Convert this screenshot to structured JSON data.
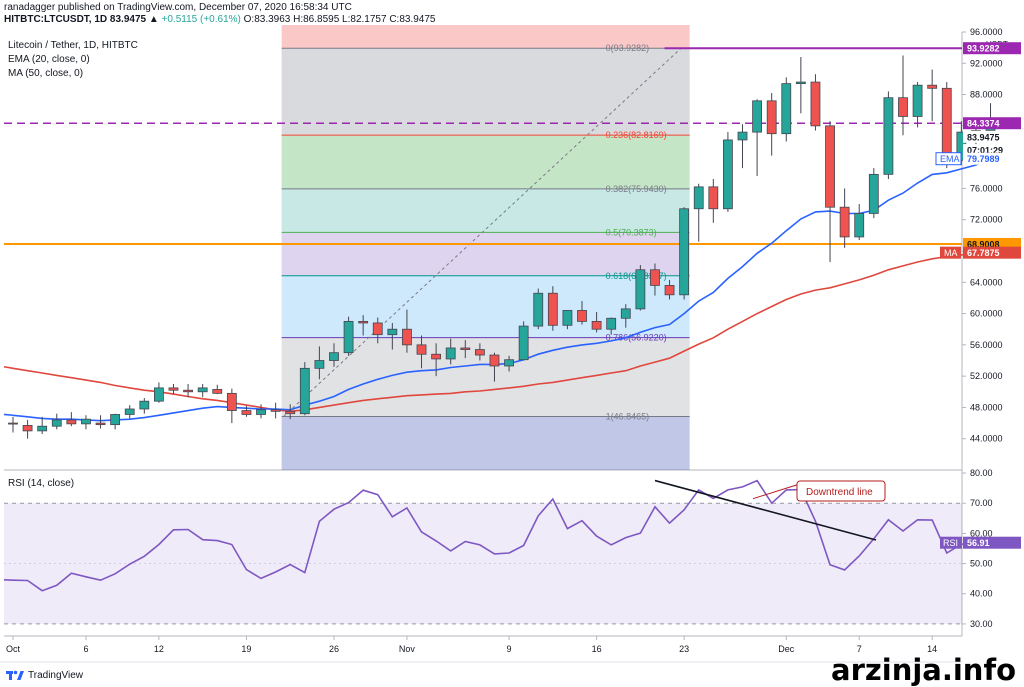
{
  "header": {
    "published_line": "ranadagger published on TradingView.com, December 07, 2020 16:58:34 UTC",
    "ohlc_line_prefix": "HITBTC:LTCUSDT, 1D  83.9475  ▲",
    "ohlc_change": "+0.5115 (+0.61%)",
    "ohlc_values": "O:83.3963  H:86.8595  L:82.1757  C:83.9475"
  },
  "indicators": {
    "title": "Litecoin / Tether, 1D, HITBTC",
    "ema": "EMA (20, close, 0)",
    "ma": "MA (50, close, 0)",
    "rsi": "RSI (14, close)"
  },
  "footer": {
    "brand": "TradingView",
    "watermark": "arzinja.info"
  },
  "colors": {
    "up": "#26a69a",
    "down": "#ef5350",
    "ema": "#2962ff",
    "ma": "#e0473d",
    "rsi": "#7e57c2",
    "purple_line": "#9c27b0",
    "orange_line": "#ff9800",
    "annotation": "#b71c1c"
  },
  "chart_data": [
    {
      "type": "candlestick",
      "title": "Litecoin / Tether, 1D, HITBTC",
      "unit": "USDT",
      "ylim": [
        40,
        96
      ],
      "y_ticks": [
        "96.0000",
        "92.0000",
        "88.0000",
        "84.0000",
        "80.0000",
        "76.0000",
        "72.0000",
        "68.0000",
        "64.0000",
        "60.0000",
        "56.0000",
        "52.0000",
        "48.0000",
        "44.0000"
      ],
      "x_ticks": [
        "Oct",
        "6",
        "12",
        "19",
        "26",
        "Nov",
        "9",
        "16",
        "23",
        "Dec",
        "7",
        "14"
      ],
      "candles": [
        {
          "o": 46.0,
          "h": 46.8,
          "l": 44.8,
          "c": 45.9
        },
        {
          "o": 45.7,
          "h": 46.4,
          "l": 44.0,
          "c": 45.0
        },
        {
          "o": 45.0,
          "h": 46.8,
          "l": 44.6,
          "c": 45.6
        },
        {
          "o": 45.6,
          "h": 47.2,
          "l": 45.2,
          "c": 46.4
        },
        {
          "o": 46.4,
          "h": 47.4,
          "l": 45.6,
          "c": 45.9
        },
        {
          "o": 45.9,
          "h": 47.0,
          "l": 45.2,
          "c": 46.5
        },
        {
          "o": 46.0,
          "h": 47.0,
          "l": 45.3,
          "c": 45.8
        },
        {
          "o": 45.8,
          "h": 47.2,
          "l": 45.2,
          "c": 47.1
        },
        {
          "o": 47.1,
          "h": 48.3,
          "l": 46.6,
          "c": 47.8
        },
        {
          "o": 47.8,
          "h": 49.2,
          "l": 47.2,
          "c": 48.8
        },
        {
          "o": 48.8,
          "h": 51.2,
          "l": 48.6,
          "c": 50.5
        },
        {
          "o": 50.5,
          "h": 51.0,
          "l": 49.7,
          "c": 50.2
        },
        {
          "o": 50.2,
          "h": 51.0,
          "l": 49.3,
          "c": 50.0
        },
        {
          "o": 50.0,
          "h": 51.0,
          "l": 49.3,
          "c": 50.5
        },
        {
          "o": 50.3,
          "h": 50.9,
          "l": 49.7,
          "c": 49.8
        },
        {
          "o": 49.8,
          "h": 50.4,
          "l": 46.0,
          "c": 47.6
        },
        {
          "o": 47.6,
          "h": 48.2,
          "l": 46.8,
          "c": 47.1
        },
        {
          "o": 47.1,
          "h": 48.4,
          "l": 46.6,
          "c": 47.7
        },
        {
          "o": 47.7,
          "h": 48.6,
          "l": 46.6,
          "c": 47.5
        },
        {
          "o": 47.5,
          "h": 48.4,
          "l": 46.5,
          "c": 47.2
        },
        {
          "o": 47.2,
          "h": 53.8,
          "l": 47.0,
          "c": 53.0
        },
        {
          "o": 53.0,
          "h": 55.8,
          "l": 51.6,
          "c": 54.0
        },
        {
          "o": 54.0,
          "h": 56.2,
          "l": 53.2,
          "c": 55.0
        },
        {
          "o": 55.0,
          "h": 59.6,
          "l": 54.6,
          "c": 59.0
        },
        {
          "o": 59.0,
          "h": 59.8,
          "l": 57.2,
          "c": 58.8
        },
        {
          "o": 58.8,
          "h": 59.5,
          "l": 56.2,
          "c": 57.3
        },
        {
          "o": 57.3,
          "h": 58.8,
          "l": 55.4,
          "c": 58.0
        },
        {
          "o": 58.0,
          "h": 60.5,
          "l": 55.0,
          "c": 56.0
        },
        {
          "o": 56.0,
          "h": 57.2,
          "l": 53.0,
          "c": 54.8
        },
        {
          "o": 54.8,
          "h": 56.2,
          "l": 52.0,
          "c": 54.2
        },
        {
          "o": 54.2,
          "h": 56.8,
          "l": 53.5,
          "c": 55.6
        },
        {
          "o": 55.6,
          "h": 56.6,
          "l": 54.3,
          "c": 55.4
        },
        {
          "o": 55.4,
          "h": 56.2,
          "l": 54.0,
          "c": 54.7
        },
        {
          "o": 54.7,
          "h": 55.0,
          "l": 51.3,
          "c": 53.3
        },
        {
          "o": 53.3,
          "h": 54.6,
          "l": 52.6,
          "c": 54.1
        },
        {
          "o": 54.1,
          "h": 59.0,
          "l": 54.0,
          "c": 58.4
        },
        {
          "o": 58.4,
          "h": 63.2,
          "l": 58.0,
          "c": 62.6
        },
        {
          "o": 62.6,
          "h": 63.5,
          "l": 57.8,
          "c": 58.5
        },
        {
          "o": 58.5,
          "h": 60.4,
          "l": 58.0,
          "c": 60.4
        },
        {
          "o": 60.4,
          "h": 61.6,
          "l": 58.6,
          "c": 59.0
        },
        {
          "o": 59.0,
          "h": 60.2,
          "l": 57.6,
          "c": 58.0
        },
        {
          "o": 58.0,
          "h": 59.5,
          "l": 57.3,
          "c": 59.4
        },
        {
          "o": 59.4,
          "h": 61.2,
          "l": 58.2,
          "c": 60.6
        },
        {
          "o": 60.6,
          "h": 66.2,
          "l": 60.4,
          "c": 65.6
        },
        {
          "o": 65.6,
          "h": 66.4,
          "l": 62.3,
          "c": 63.6
        },
        {
          "o": 63.6,
          "h": 64.3,
          "l": 61.8,
          "c": 62.4
        },
        {
          "o": 62.4,
          "h": 73.6,
          "l": 61.8,
          "c": 73.4
        },
        {
          "o": 73.4,
          "h": 76.6,
          "l": 69.2,
          "c": 76.2
        },
        {
          "o": 76.2,
          "h": 77.2,
          "l": 71.6,
          "c": 73.4
        },
        {
          "o": 73.4,
          "h": 83.2,
          "l": 73.0,
          "c": 82.2
        },
        {
          "o": 82.2,
          "h": 84.2,
          "l": 78.6,
          "c": 83.2
        },
        {
          "o": 83.2,
          "h": 87.4,
          "l": 77.6,
          "c": 87.2
        },
        {
          "o": 87.2,
          "h": 88.2,
          "l": 80.2,
          "c": 83.0
        },
        {
          "o": 83.0,
          "h": 90.2,
          "l": 82.0,
          "c": 89.4
        },
        {
          "o": 89.4,
          "h": 92.8,
          "l": 85.6,
          "c": 89.6
        },
        {
          "o": 89.6,
          "h": 90.6,
          "l": 83.4,
          "c": 84.0
        },
        {
          "o": 84.0,
          "h": 84.6,
          "l": 66.6,
          "c": 73.6
        },
        {
          "o": 73.6,
          "h": 76.0,
          "l": 68.4,
          "c": 69.8
        },
        {
          "o": 69.8,
          "h": 74.0,
          "l": 69.4,
          "c": 72.8
        },
        {
          "o": 72.8,
          "h": 78.6,
          "l": 72.2,
          "c": 77.8
        },
        {
          "o": 77.8,
          "h": 88.4,
          "l": 77.2,
          "c": 87.6
        },
        {
          "o": 87.6,
          "h": 93.0,
          "l": 82.8,
          "c": 85.2
        },
        {
          "o": 85.2,
          "h": 89.6,
          "l": 83.8,
          "c": 89.2
        },
        {
          "o": 89.2,
          "h": 91.2,
          "l": 84.6,
          "c": 88.8
        },
        {
          "o": 88.8,
          "h": 89.6,
          "l": 78.6,
          "c": 79.6
        },
        {
          "o": 79.6,
          "h": 84.6,
          "l": 79.0,
          "c": 83.2
        },
        {
          "o": 83.2,
          "h": 84.4,
          "l": 80.2,
          "c": 83.4
        },
        {
          "o": 83.4,
          "h": 86.9,
          "l": 82.2,
          "c": 83.9
        }
      ],
      "ema_20": [
        47.0,
        46.8,
        46.6,
        46.5,
        46.5,
        46.4,
        46.3,
        46.4,
        46.5,
        46.7,
        47.0,
        47.3,
        47.6,
        47.9,
        48.1,
        48.0,
        47.9,
        47.8,
        47.8,
        47.7,
        48.3,
        48.8,
        49.4,
        50.3,
        51.0,
        51.6,
        52.1,
        52.5,
        52.7,
        52.8,
        53.1,
        53.3,
        53.5,
        53.5,
        53.6,
        54.1,
        54.8,
        55.3,
        55.7,
        56.0,
        56.2,
        56.5,
        56.9,
        57.6,
        58.2,
        58.6,
        60.0,
        61.6,
        62.7,
        64.5,
        66.0,
        67.7,
        69.0,
        70.6,
        72.1,
        73.0,
        73.1,
        72.8,
        72.8,
        73.2,
        74.5,
        75.4,
        76.7,
        77.8,
        78.0,
        78.5,
        79.0,
        79.8
      ],
      "ma_50": [
        53.0,
        52.7,
        52.4,
        52.1,
        51.8,
        51.5,
        51.2,
        50.8,
        50.5,
        50.2,
        50.0,
        49.7,
        49.4,
        49.1,
        48.9,
        48.6,
        48.3,
        48.0,
        47.7,
        47.5,
        47.7,
        48.0,
        48.3,
        48.6,
        48.9,
        49.1,
        49.3,
        49.5,
        49.6,
        49.7,
        49.8,
        50.0,
        50.1,
        50.3,
        50.5,
        50.7,
        51.0,
        51.2,
        51.5,
        51.8,
        52.1,
        52.4,
        52.7,
        53.3,
        53.8,
        54.3,
        55.2,
        56.1,
        56.9,
        58.0,
        59.0,
        60.0,
        60.9,
        61.8,
        62.5,
        63.0,
        63.3,
        63.8,
        64.3,
        64.9,
        65.6,
        66.1,
        66.6,
        67.0,
        67.3,
        67.5,
        67.6,
        67.8
      ],
      "price_labels": {
        "top_line": "93.9282",
        "horizontal_dash": "84.3374",
        "last": "83.9475",
        "countdown": "07:01:29",
        "ema": "79.7989",
        "orange_line": "68.9008",
        "ma": "67.7875",
        "ema_tag": "EMA",
        "ma_tag": "MA"
      },
      "fibonacci": [
        {
          "label": "0(93.9282)",
          "level": 93.9282
        },
        {
          "label": "0.236(82.8169)",
          "level": 82.8169
        },
        {
          "label": "0.382(75.9430)",
          "level": 75.943
        },
        {
          "label": "0.5(70.3873)",
          "level": 70.3873
        },
        {
          "label": "0.618(64.8317)",
          "level": 64.8317
        },
        {
          "label": "0.786(56.9220)",
          "level": 56.922
        },
        {
          "label": "1(46.8465)",
          "level": 46.8465
        }
      ],
      "horizontal_lines": [
        93.9282,
        84.3374,
        68.9008
      ]
    },
    {
      "type": "line",
      "title": "RSI (14, close)",
      "ylim": [
        26,
        81
      ],
      "y_ticks": [
        "80.00",
        "70.00",
        "60.00",
        "50.00",
        "40.00",
        "30.00"
      ],
      "band": [
        30,
        70
      ],
      "values": [
        44.5,
        44.4,
        41.0,
        42.8,
        46.8,
        45.6,
        44.5,
        46.6,
        49.8,
        52.4,
        56.3,
        61.2,
        61.3,
        57.9,
        57.6,
        56.3,
        48.0,
        45.1,
        47.2,
        49.7,
        47.0,
        64.0,
        68.0,
        70.2,
        74.3,
        72.8,
        65.5,
        68.4,
        60.5,
        57.5,
        54.2,
        57.3,
        56.2,
        53.2,
        53.5,
        56.0,
        65.8,
        71.4,
        61.6,
        64.2,
        59.1,
        56.2,
        58.6,
        60.1,
        68.8,
        63.4,
        67.8,
        74.4,
        71.6,
        74.4,
        75.4,
        77.5,
        70.0,
        74.4,
        74.5,
        64.0,
        49.6,
        47.9,
        52.5,
        58.2,
        64.5,
        60.8,
        64.5,
        64.4,
        53.5,
        56.4,
        56.5,
        56.9
      ],
      "rsi_tag": "RSI",
      "last_value": "56.91",
      "annotation": "Downtrend line"
    }
  ]
}
